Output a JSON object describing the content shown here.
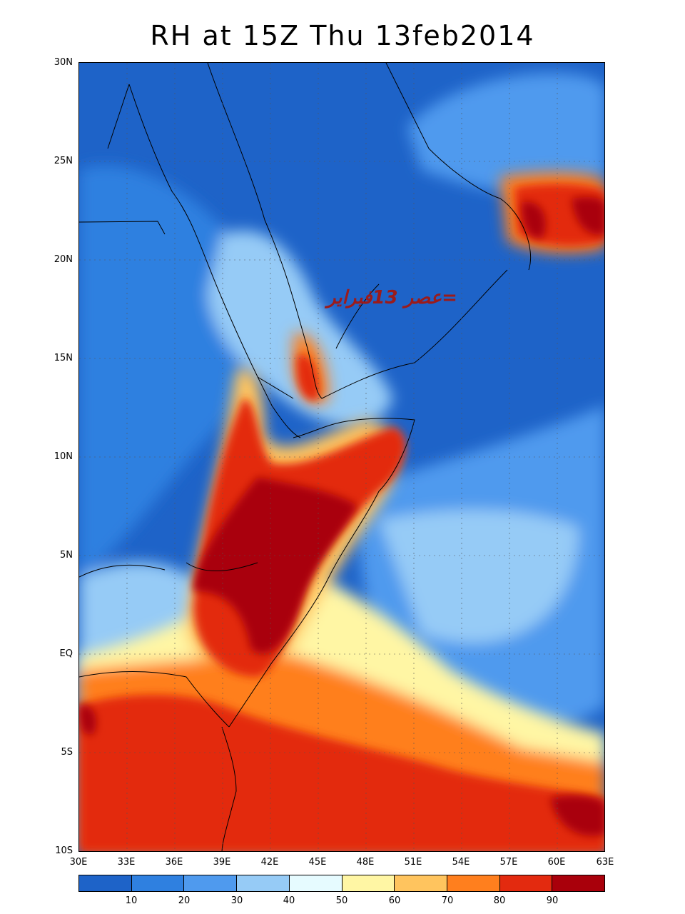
{
  "title": "RH at 15Z Thu 13feb2014",
  "annotation": "عصر 13فبراير=",
  "y_axis": {
    "labels": [
      "30N",
      "25N",
      "20N",
      "15N",
      "10N",
      "5N",
      "EQ",
      "5S",
      "10S"
    ]
  },
  "x_axis": {
    "labels": [
      "30E",
      "33E",
      "36E",
      "39E",
      "42E",
      "45E",
      "48E",
      "51E",
      "54E",
      "57E",
      "60E",
      "63E"
    ]
  },
  "colorbar": {
    "colors": [
      "#1e63c8",
      "#2f80e0",
      "#4f9aee",
      "#96cbf6",
      "#e6fbff",
      "#fff6a4",
      "#ffc45e",
      "#ff7f1e",
      "#e32a0f",
      "#a9000b"
    ],
    "labels": [
      "10",
      "20",
      "30",
      "40",
      "50",
      "60",
      "70",
      "80",
      "90"
    ]
  },
  "fields": {
    "background": "#1e63c8"
  }
}
